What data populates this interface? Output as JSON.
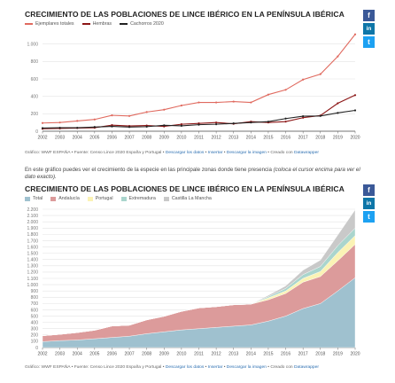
{
  "intro_text": "En este gráfico puedes ver el crecimiento de la especie en las principale zonas donde tiene presencia",
  "intro_italic": "(coloca el cursor encima para ver el dato exacto).",
  "social": {
    "facebook": "f",
    "linkedin": "in",
    "twitter": "t"
  },
  "colors": {
    "facebook": "#3b5998",
    "linkedin": "#0e76a8",
    "twitter": "#1da1f2",
    "link": "#2c6fb1"
  },
  "chart_data": [
    {
      "type": "line",
      "title": "CRECIMIENTO DE LAS POBLACIONES DE LINCE IBÉRICO EN LA PENÍNSULA IBÉRICA",
      "x": [
        "2002",
        "2003",
        "2004",
        "2005",
        "2006",
        "2007",
        "2008",
        "2009",
        "2010",
        "2011",
        "2012",
        "2013",
        "2014",
        "2015",
        "2016",
        "2017",
        "2018",
        "2019",
        "2020"
      ],
      "series": [
        {
          "name": "Ejemplares totales",
          "color": "#e06a5f",
          "values": [
            94,
            100,
            118,
            135,
            182,
            175,
            220,
            247,
            295,
            330,
            330,
            340,
            330,
            420,
            475,
            592,
            655,
            858,
            1111
          ]
        },
        {
          "name": "Hembras",
          "color": "#8c1616",
          "values": [
            28,
            32,
            36,
            40,
            70,
            60,
            65,
            55,
            80,
            90,
            100,
            85,
            110,
            100,
            110,
            155,
            180,
            320,
            414
          ]
        },
        {
          "name": "Cachorros 2020",
          "color": "#222222",
          "values": [
            36,
            40,
            40,
            48,
            55,
            48,
            52,
            68,
            62,
            75,
            80,
            90,
            100,
            110,
            145,
            172,
            175,
            210,
            239
          ]
        }
      ],
      "yticks": [
        0,
        200,
        400,
        600,
        800,
        1000
      ],
      "ylim": [
        0,
        1200
      ],
      "grid": true,
      "legend": "top-left",
      "source": "Gráfico: WWF ESPAÑA • Fuente: Censo Lince 2020 España y Portugal •",
      "links": [
        "Descargar los datos",
        "Insertar",
        "Descargar la imagen"
      ],
      "credit": "• Creado con",
      "credit_link": "Datawrapper"
    },
    {
      "type": "area",
      "stacked": true,
      "title": "CRECIMIENTO DE LAS POBLACIONES DE LINCE IBÉRICO EN LA PENÍNSULA IBÉRICA",
      "x": [
        "2002",
        "2003",
        "2004",
        "2005",
        "2006",
        "2007",
        "2008",
        "2009",
        "2010",
        "2011",
        "2012",
        "2013",
        "2014",
        "2015",
        "2016",
        "2017",
        "2018",
        "2019",
        "2020"
      ],
      "series": [
        {
          "name": "Total",
          "color": "#9fc1cf",
          "values": [
            94,
            110,
            120,
            140,
            160,
            180,
            220,
            250,
            280,
            300,
            320,
            340,
            360,
            420,
            500,
            620,
            700,
            900,
            1111
          ]
        },
        {
          "name": "Andalucía",
          "color": "#dc9b9b",
          "values": [
            94,
            100,
            118,
            135,
            182,
            175,
            220,
            247,
            295,
            330,
            330,
            340,
            330,
            340,
            360,
            420,
            430,
            480,
            530
          ]
        },
        {
          "name": "Portugal",
          "color": "#fbf3b5",
          "values": [
            0,
            0,
            0,
            0,
            0,
            0,
            0,
            0,
            0,
            0,
            0,
            0,
            0,
            30,
            40,
            60,
            80,
            130,
            140
          ]
        },
        {
          "name": "Extremadura",
          "color": "#aad5cd",
          "values": [
            0,
            0,
            0,
            0,
            0,
            0,
            0,
            0,
            0,
            0,
            0,
            0,
            0,
            20,
            40,
            60,
            80,
            110,
            120
          ]
        },
        {
          "name": "Castilla La Mancha",
          "color": "#c9c9c9",
          "values": [
            0,
            0,
            0,
            0,
            0,
            0,
            0,
            0,
            0,
            0,
            0,
            0,
            0,
            20,
            40,
            70,
            100,
            170,
            290
          ]
        }
      ],
      "yticks": [
        0,
        100,
        200,
        300,
        400,
        500,
        600,
        700,
        800,
        900,
        1000,
        1100,
        1200,
        1300,
        1400,
        1500,
        1600,
        1700,
        1800,
        1900,
        2000,
        2100,
        2200
      ],
      "ylim": [
        0,
        2200
      ],
      "grid": true,
      "legend": "top-left",
      "source": "Gráfico: WWF ESPAÑA • Fuente: Censo Lince 2020 España y Portugal •",
      "links": [
        "Descargar los datos",
        "Insertar",
        "Descargar la imagen"
      ],
      "credit": "• Creado con",
      "credit_link": "Datawrapper"
    }
  ]
}
